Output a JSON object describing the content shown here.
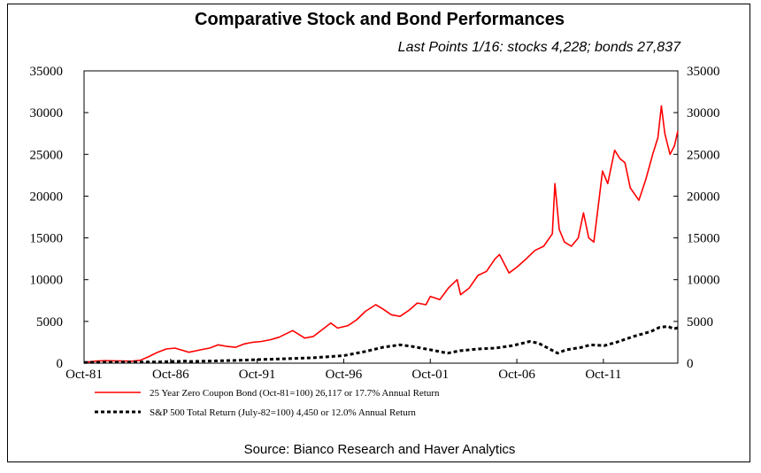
{
  "chart_data": {
    "type": "line",
    "title": "Comparative Stock and Bond Performances",
    "subtitle": "Last Points 1/16: stocks 4,228; bonds 27,837",
    "xlabel": "",
    "ylabel": "",
    "x_tick_labels": [
      "Oct-81",
      "Oct-86",
      "Oct-91",
      "Oct-96",
      "Oct-01",
      "Oct-06",
      "Oct-11"
    ],
    "x_ticks": [
      1981.75,
      1986.75,
      1991.75,
      1996.75,
      2001.75,
      2006.75,
      2011.75
    ],
    "xlim": [
      1981.75,
      2016.05
    ],
    "y_tick_labels": [
      "0",
      "5000",
      "10000",
      "15000",
      "20000",
      "25000",
      "30000",
      "35000"
    ],
    "ylim": [
      0,
      35000
    ],
    "grid": false,
    "legend_position": "bottom",
    "series": [
      {
        "name": "25 Year Zero Coupon Bond (Oct-81=100) 26,117 or 17.7% Annual Return",
        "color": "#ff0000",
        "style": "solid",
        "points": [
          [
            1981.75,
            100
          ],
          [
            1982.5,
            250
          ],
          [
            1983.0,
            300
          ],
          [
            1983.5,
            280
          ],
          [
            1984.0,
            250
          ],
          [
            1984.5,
            230
          ],
          [
            1985.0,
            350
          ],
          [
            1985.5,
            800
          ],
          [
            1986.0,
            1300
          ],
          [
            1986.5,
            1700
          ],
          [
            1987.0,
            1800
          ],
          [
            1987.5,
            1500
          ],
          [
            1987.8,
            1300
          ],
          [
            1988.5,
            1600
          ],
          [
            1989.0,
            1800
          ],
          [
            1989.5,
            2200
          ],
          [
            1990.0,
            2000
          ],
          [
            1990.5,
            1900
          ],
          [
            1991.0,
            2300
          ],
          [
            1991.5,
            2500
          ],
          [
            1992.0,
            2600
          ],
          [
            1992.5,
            2800
          ],
          [
            1993.0,
            3100
          ],
          [
            1993.8,
            3900
          ],
          [
            1994.5,
            3000
          ],
          [
            1995.0,
            3200
          ],
          [
            1995.5,
            4000
          ],
          [
            1996.0,
            4800
          ],
          [
            1996.4,
            4200
          ],
          [
            1997.0,
            4500
          ],
          [
            1997.5,
            5200
          ],
          [
            1998.0,
            6200
          ],
          [
            1998.6,
            7000
          ],
          [
            1999.0,
            6500
          ],
          [
            1999.5,
            5800
          ],
          [
            2000.0,
            5600
          ],
          [
            2000.5,
            6300
          ],
          [
            2001.0,
            7200
          ],
          [
            2001.5,
            7000
          ],
          [
            2001.75,
            8000
          ],
          [
            2002.3,
            7600
          ],
          [
            2002.8,
            9000
          ],
          [
            2003.3,
            10000
          ],
          [
            2003.5,
            8200
          ],
          [
            2004.0,
            9000
          ],
          [
            2004.5,
            10500
          ],
          [
            2005.0,
            11000
          ],
          [
            2005.5,
            12500
          ],
          [
            2005.75,
            13000
          ],
          [
            2006.3,
            10800
          ],
          [
            2006.75,
            11500
          ],
          [
            2007.3,
            12500
          ],
          [
            2007.8,
            13500
          ],
          [
            2008.3,
            14000
          ],
          [
            2008.8,
            15500
          ],
          [
            2008.95,
            21500
          ],
          [
            2009.2,
            16000
          ],
          [
            2009.5,
            14500
          ],
          [
            2009.9,
            14000
          ],
          [
            2010.3,
            15000
          ],
          [
            2010.6,
            18000
          ],
          [
            2010.9,
            15000
          ],
          [
            2011.2,
            14500
          ],
          [
            2011.7,
            23000
          ],
          [
            2012.0,
            21500
          ],
          [
            2012.4,
            25500
          ],
          [
            2012.7,
            24500
          ],
          [
            2013.0,
            24000
          ],
          [
            2013.3,
            21000
          ],
          [
            2013.8,
            19500
          ],
          [
            2014.2,
            22000
          ],
          [
            2014.6,
            25000
          ],
          [
            2014.9,
            27000
          ],
          [
            2015.1,
            30800
          ],
          [
            2015.3,
            27500
          ],
          [
            2015.6,
            25000
          ],
          [
            2015.85,
            26000
          ],
          [
            2016.05,
            27800
          ]
        ]
      },
      {
        "name": "S&P 500 Total Return (July-82=100) 4,450 or 12.0% Annual Return",
        "color": "#000000",
        "style": "dotted",
        "points": [
          [
            1981.75,
            80
          ],
          [
            1982.5,
            100
          ],
          [
            1984.0,
            120
          ],
          [
            1986.0,
            150
          ],
          [
            1987.7,
            250
          ],
          [
            1987.9,
            200
          ],
          [
            1989.0,
            250
          ],
          [
            1990.5,
            330
          ],
          [
            1991.75,
            420
          ],
          [
            1993.0,
            500
          ],
          [
            1995.0,
            650
          ],
          [
            1996.75,
            900
          ],
          [
            1998.0,
            1400
          ],
          [
            1999.0,
            1900
          ],
          [
            2000.0,
            2200
          ],
          [
            2000.7,
            2000
          ],
          [
            2001.75,
            1600
          ],
          [
            2002.75,
            1200
          ],
          [
            2003.5,
            1500
          ],
          [
            2004.5,
            1700
          ],
          [
            2005.5,
            1800
          ],
          [
            2006.5,
            2100
          ],
          [
            2007.5,
            2600
          ],
          [
            2008.0,
            2400
          ],
          [
            2009.1,
            1200
          ],
          [
            2009.6,
            1600
          ],
          [
            2010.5,
            1900
          ],
          [
            2011.0,
            2200
          ],
          [
            2011.8,
            2100
          ],
          [
            2012.5,
            2500
          ],
          [
            2013.5,
            3200
          ],
          [
            2014.5,
            3800
          ],
          [
            2015.0,
            4300
          ],
          [
            2015.5,
            4400
          ],
          [
            2015.8,
            4100
          ],
          [
            2016.05,
            4228
          ]
        ]
      }
    ],
    "source": "Source: Bianco Research and Haver Analytics"
  }
}
